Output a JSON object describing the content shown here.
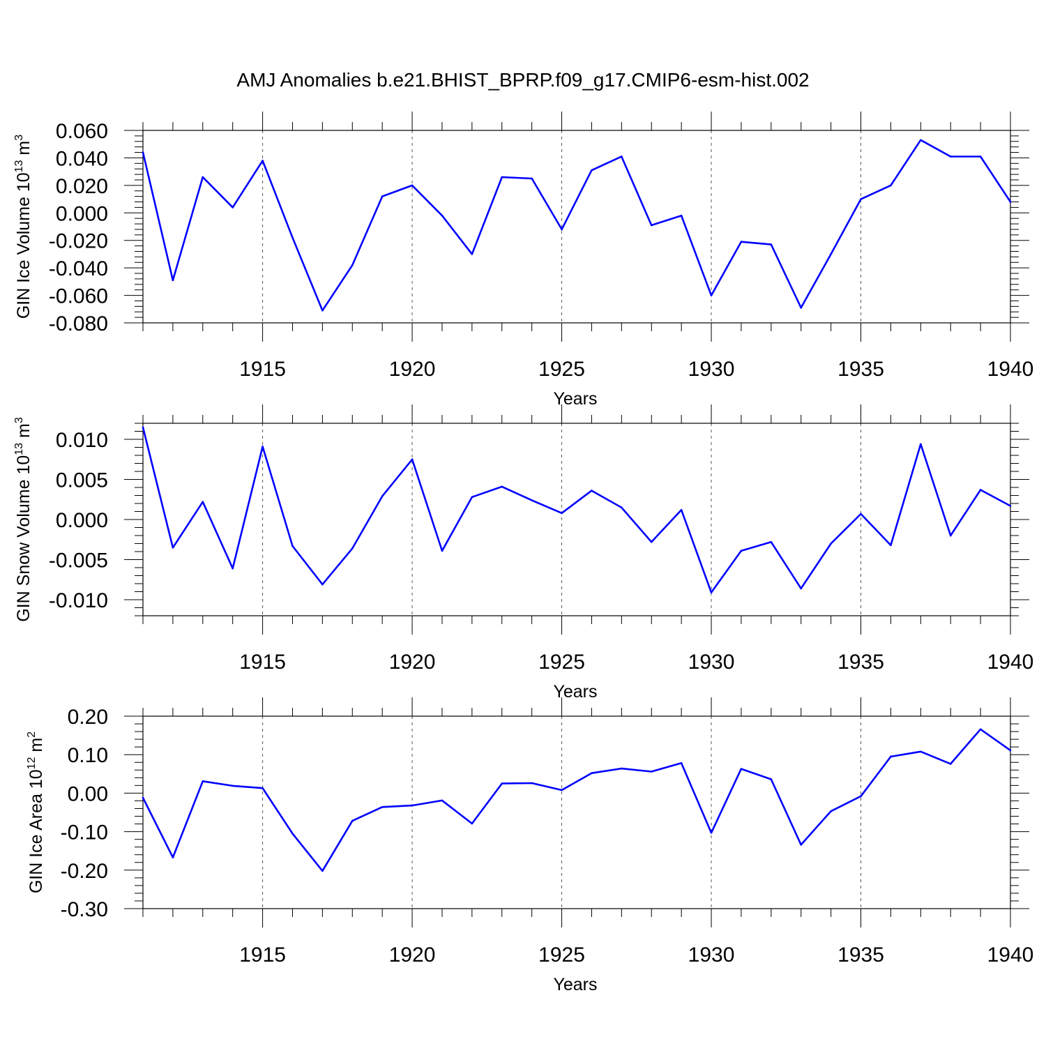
{
  "title": "AMJ Anomalies b.e21.BHIST_BPRP.f09_g17.CMIP6-esm-hist.002",
  "colors": {
    "line": "#0000ff",
    "axis": "#000000",
    "grid": "#555555"
  },
  "chart_data": [
    {
      "type": "line",
      "ylabel": "GIN Ice Volume 10",
      "ylabel_exp": "13",
      "ylabel_unit": " m",
      "ylabel_unit_exp": "3",
      "xlabel": "Years",
      "xlim": [
        1911,
        1940
      ],
      "ylim": [
        -0.08,
        0.06
      ],
      "yticks": [
        -0.08,
        -0.06,
        -0.04,
        -0.02,
        0.0,
        0.02,
        0.04,
        0.06
      ],
      "ytick_labels": [
        "-0.080",
        "-0.060",
        "-0.040",
        "-0.020",
        "0.000",
        "0.020",
        "0.040",
        "0.060"
      ],
      "yminor_step": 0.004,
      "xticks": [
        1915,
        1920,
        1925,
        1930,
        1935,
        1940
      ],
      "xtick_labels": [
        "1915",
        "1920",
        "1925",
        "1930",
        "1935",
        "1940"
      ],
      "grid": "vertical dashed at major x ticks",
      "x": [
        1911,
        1912,
        1913,
        1914,
        1915,
        1916,
        1917,
        1918,
        1919,
        1920,
        1921,
        1922,
        1923,
        1924,
        1925,
        1926,
        1927,
        1928,
        1929,
        1930,
        1931,
        1932,
        1933,
        1934,
        1935,
        1936,
        1937,
        1938,
        1939,
        1940
      ],
      "values": [
        0.044,
        -0.049,
        0.026,
        0.004,
        0.038,
        -0.018,
        -0.071,
        -0.038,
        0.012,
        0.02,
        -0.002,
        -0.03,
        0.026,
        0.025,
        -0.012,
        0.031,
        0.041,
        -0.009,
        -0.002,
        -0.06,
        -0.021,
        -0.023,
        -0.069,
        -0.03,
        0.01,
        0.02,
        0.053,
        0.041,
        0.041,
        0.008
      ]
    },
    {
      "type": "line",
      "ylabel": "GIN Snow Volume 10",
      "ylabel_exp": "13",
      "ylabel_unit": " m",
      "ylabel_unit_exp": "3",
      "xlabel": "Years",
      "xlim": [
        1911,
        1940
      ],
      "ylim": [
        -0.012,
        0.012
      ],
      "yticks": [
        -0.01,
        -0.005,
        0.0,
        0.005,
        0.01
      ],
      "ytick_labels": [
        "-0.010",
        "-0.005",
        "0.000",
        "0.005",
        "0.010"
      ],
      "yminor_step": 0.001,
      "xticks": [
        1915,
        1920,
        1925,
        1930,
        1935,
        1940
      ],
      "xtick_labels": [
        "1915",
        "1920",
        "1925",
        "1930",
        "1935",
        "1940"
      ],
      "grid": "vertical dashed at major x ticks",
      "x": [
        1911,
        1912,
        1913,
        1914,
        1915,
        1916,
        1917,
        1918,
        1919,
        1920,
        1921,
        1922,
        1923,
        1924,
        1925,
        1926,
        1927,
        1928,
        1929,
        1930,
        1931,
        1932,
        1933,
        1934,
        1935,
        1936,
        1937,
        1938,
        1939,
        1940
      ],
      "values": [
        0.0115,
        -0.0035,
        0.0022,
        -0.0061,
        0.0091,
        -0.0033,
        -0.0081,
        -0.0036,
        0.0029,
        0.0075,
        -0.0039,
        0.0028,
        0.0041,
        0.0024,
        0.0008,
        0.0036,
        0.0015,
        -0.0028,
        0.0012,
        -0.0091,
        -0.0039,
        -0.0028,
        -0.0086,
        -0.003,
        0.0007,
        -0.0032,
        0.0094,
        -0.002,
        0.0037,
        0.0017
      ]
    },
    {
      "type": "line",
      "ylabel": "GIN Ice Area 10",
      "ylabel_exp": "12",
      "ylabel_unit": " m",
      "ylabel_unit_exp": "2",
      "xlabel": "Years",
      "xlim": [
        1911,
        1940
      ],
      "ylim": [
        -0.3,
        0.2
      ],
      "yticks": [
        -0.3,
        -0.2,
        -0.1,
        0.0,
        0.1,
        0.2
      ],
      "ytick_labels": [
        "-0.30",
        "-0.20",
        "-0.10",
        "0.00",
        "0.10",
        "0.20"
      ],
      "yminor_step": 0.02,
      "xticks": [
        1915,
        1920,
        1925,
        1930,
        1935,
        1940
      ],
      "xtick_labels": [
        "1915",
        "1920",
        "1925",
        "1930",
        "1935",
        "1940"
      ],
      "grid": "vertical dashed at major x ticks",
      "x": [
        1911,
        1912,
        1913,
        1914,
        1915,
        1916,
        1917,
        1918,
        1919,
        1920,
        1921,
        1922,
        1923,
        1924,
        1925,
        1926,
        1927,
        1928,
        1929,
        1930,
        1931,
        1932,
        1933,
        1934,
        1935,
        1936,
        1937,
        1938,
        1939,
        1940
      ],
      "values": [
        -0.012,
        -0.167,
        0.031,
        0.019,
        0.013,
        -0.105,
        -0.202,
        -0.072,
        -0.036,
        -0.032,
        -0.019,
        -0.079,
        0.025,
        0.026,
        0.008,
        0.052,
        0.064,
        0.056,
        0.078,
        -0.103,
        0.063,
        0.036,
        -0.134,
        -0.047,
        -0.008,
        0.095,
        0.108,
        0.076,
        0.166,
        0.111
      ]
    }
  ]
}
